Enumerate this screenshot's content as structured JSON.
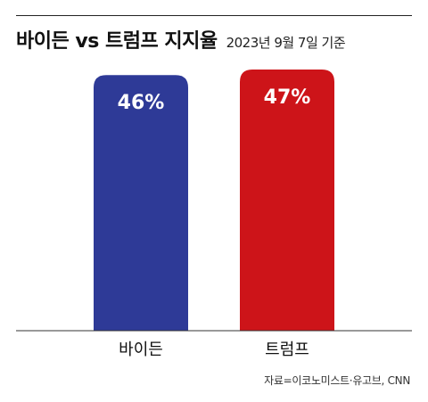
{
  "header": {
    "title": "바이든 vs 트럼프 지지율",
    "subtitle": "2023년 9월 7일 기준"
  },
  "source": "자료=이코노미스트·유고브, CNN",
  "colors": {
    "biden": "#2e3a97",
    "trump": "#cd1419",
    "baseline": "#333333",
    "label_text": "#ffffff",
    "category_text": "#111111"
  },
  "chart_data": {
    "type": "bar",
    "title": "바이든 vs 트럼프 지지율",
    "subtitle": "2023년 9월 7일 기준",
    "categories": [
      "바이든",
      "트럼프"
    ],
    "values": [
      46,
      47
    ],
    "data_labels": [
      "46%",
      "47%"
    ],
    "unit": "%",
    "ylim": [
      0,
      47
    ],
    "grid": false,
    "legend": "none"
  }
}
